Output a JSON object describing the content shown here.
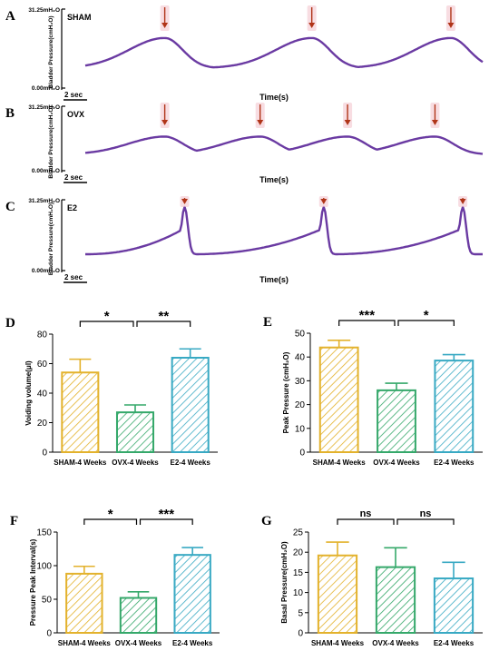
{
  "colors": {
    "trace": "#6a3aa2",
    "arrow": "#b03418",
    "arrow_glow": "#f4c7cf",
    "sham": "#e3b22c",
    "ovx": "#35a86a",
    "e2": "#38a9c3",
    "axis": "#000000"
  },
  "traces": [
    {
      "panel_letter": "A",
      "group": "SHAM",
      "y_top_label": "31.25mH₂O",
      "y_bottom_label": "0.00mH₂O",
      "y_axis_label": "Bladder Pressure(cmH₂O)",
      "scale_label": "2 sec",
      "x_axis_label": "Time(s)",
      "waveform": "smooth",
      "peaks_at": [
        0.2,
        0.57,
        0.92
      ]
    },
    {
      "panel_letter": "B",
      "group": "OVX",
      "y_top_label": "31.25mH₂O",
      "y_bottom_label": "0.00mH₂O",
      "y_axis_label": "Bladder Pressure(cmH₂O)",
      "scale_label": "2 sec",
      "x_axis_label": "Time(s)",
      "waveform": "smooth",
      "peaks_at": [
        0.2,
        0.44,
        0.66,
        0.88
      ]
    },
    {
      "panel_letter": "C",
      "group": "E2",
      "y_top_label": "31.25mH₂O",
      "y_bottom_label": "0.00mH₂O",
      "y_axis_label": "Bladder Pressure(cmH₂O)",
      "scale_label": "2 sec",
      "x_axis_label": "Time(s)",
      "waveform": "sharp",
      "peaks_at": [
        0.25,
        0.6,
        0.95
      ]
    }
  ],
  "chart_data": [
    {
      "panel_letter": "D",
      "type": "bar",
      "categories": [
        "SHAM-4 Weeks",
        "OVX-4 Weeks",
        "E2-4 Weeks"
      ],
      "values": [
        54,
        27,
        64
      ],
      "errors": [
        9,
        5,
        6
      ],
      "ylabel": "Voiding volume(μl)",
      "ylim": [
        0,
        80
      ],
      "yticks": [
        "0",
        "20",
        "40",
        "60",
        "80"
      ],
      "comparisons": [
        {
          "from": 0,
          "to": 1,
          "label": "*"
        },
        {
          "from": 1,
          "to": 2,
          "label": "**"
        }
      ]
    },
    {
      "panel_letter": "E",
      "type": "bar",
      "categories": [
        "SHAM-4 Weeks",
        "OVX-4 Weeks",
        "E2-4 Weeks"
      ],
      "values": [
        44,
        26,
        38.5
      ],
      "errors": [
        3,
        3,
        2.5
      ],
      "ylabel": "Peak  Pressure (cmH₂O)",
      "ylim": [
        0,
        50
      ],
      "yticks": [
        "0",
        "10",
        "20",
        "30",
        "40",
        "50"
      ],
      "comparisons": [
        {
          "from": 0,
          "to": 1,
          "label": "***"
        },
        {
          "from": 1,
          "to": 2,
          "label": "*"
        }
      ]
    },
    {
      "panel_letter": "F",
      "type": "bar",
      "categories": [
        "SHAM-4 Weeks",
        "OVX-4 Weeks",
        "E2-4 Weeks"
      ],
      "values": [
        88,
        52,
        116
      ],
      "errors": [
        11,
        9,
        11
      ],
      "ylabel": "Pressure Peak Interval(s)",
      "ylim": [
        0,
        150
      ],
      "yticks": [
        "0",
        "50",
        "100",
        "150"
      ],
      "comparisons": [
        {
          "from": 0,
          "to": 1,
          "label": "*"
        },
        {
          "from": 1,
          "to": 2,
          "label": "***"
        }
      ]
    },
    {
      "panel_letter": "G",
      "type": "bar",
      "categories": [
        "SHAM-4 Weeks",
        "OVX-4 Weeks",
        "E2-4 Weeks"
      ],
      "values": [
        19.2,
        16.3,
        13.5
      ],
      "errors": [
        3.3,
        4.8,
        4.0
      ],
      "ylabel": "Basal Pressure(cmH₂O)",
      "ylim": [
        0,
        25
      ],
      "yticks": [
        "0",
        "5",
        "10",
        "15",
        "20",
        "25"
      ],
      "comparisons": [
        {
          "from": 0,
          "to": 1,
          "label": "ns"
        },
        {
          "from": 1,
          "to": 2,
          "label": "ns"
        }
      ]
    }
  ]
}
